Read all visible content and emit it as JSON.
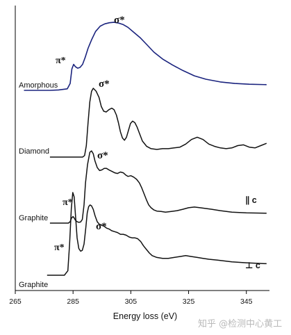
{
  "chart_data": {
    "type": "line",
    "title": "",
    "xlabel": "Energy loss (eV)",
    "ylabel": "",
    "xlim": [
      265,
      353
    ],
    "xticks": [
      265,
      285,
      305,
      325,
      345
    ],
    "grid": false,
    "series": [
      {
        "name": "Amorphous",
        "color": "#1a237e",
        "x": [
          268,
          277,
          280,
          283,
          284,
          284.6,
          285.2,
          285.8,
          286.6,
          287.4,
          288.3,
          289.2,
          290.2,
          291.4,
          292.8,
          294.4,
          296,
          297.6,
          299.2,
          300.8,
          302.4,
          304,
          306,
          308.2,
          310.5,
          313,
          316,
          319.5,
          323,
          327,
          331,
          336,
          341,
          346,
          352
        ],
        "y": [
          0,
          0,
          0.005,
          0.02,
          0.09,
          0.28,
          0.34,
          0.31,
          0.29,
          0.3,
          0.34,
          0.43,
          0.55,
          0.66,
          0.77,
          0.84,
          0.87,
          0.885,
          0.89,
          0.88,
          0.86,
          0.825,
          0.76,
          0.69,
          0.6,
          0.5,
          0.41,
          0.33,
          0.26,
          0.19,
          0.145,
          0.11,
          0.09,
          0.08,
          0.075
        ]
      },
      {
        "name": "Diamond",
        "color": "#111111",
        "x": [
          277,
          282,
          287,
          288.3,
          289,
          289.6,
          290.2,
          290.8,
          291.4,
          292,
          293,
          294,
          294.8,
          295.6,
          296.5,
          297.4,
          298.4,
          299.2,
          300,
          300.7,
          301.4,
          302.1,
          302.8,
          303.5,
          304.2,
          304.9,
          305.6,
          306.4,
          307.2,
          308,
          309,
          310.5,
          312,
          314,
          316,
          318,
          320,
          322,
          324,
          326,
          328,
          330,
          332,
          334,
          336,
          338,
          340,
          342,
          344,
          346,
          348,
          350,
          352
        ],
        "y": [
          0,
          0,
          0,
          0,
          0.02,
          0.15,
          0.45,
          0.72,
          0.86,
          0.9,
          0.86,
          0.78,
          0.66,
          0.6,
          0.59,
          0.62,
          0.64,
          0.62,
          0.55,
          0.45,
          0.33,
          0.25,
          0.22,
          0.26,
          0.35,
          0.44,
          0.47,
          0.45,
          0.39,
          0.31,
          0.21,
          0.14,
          0.11,
          0.1,
          0.11,
          0.11,
          0.12,
          0.13,
          0.17,
          0.23,
          0.26,
          0.23,
          0.17,
          0.14,
          0.12,
          0.11,
          0.12,
          0.15,
          0.16,
          0.13,
          0.12,
          0.15,
          0.18
        ]
      },
      {
        "name": "Graphite",
        "annotation": "∥ c",
        "color": "#111111",
        "x": [
          277,
          283.4,
          284,
          284.5,
          285,
          285.4,
          285.8,
          286.4,
          287,
          287.6,
          288.2,
          288.8,
          289.3,
          290,
          290.8,
          291.4,
          292,
          292.6,
          293.4,
          294.2,
          295,
          295.8,
          296.6,
          297.4,
          298.4,
          299.4,
          300.4,
          301.4,
          302.4,
          303.2,
          304,
          305,
          306,
          307,
          308,
          308.8,
          309.6,
          310.4,
          311.2,
          312,
          313,
          314,
          315.5,
          317,
          319,
          321,
          323,
          325,
          327,
          329,
          331,
          333,
          336,
          340,
          345,
          352
        ],
        "y": [
          0,
          0,
          0.02,
          0.07,
          0.09,
          0.07,
          0.04,
          0.02,
          0.01,
          0.015,
          0.05,
          0.25,
          0.55,
          0.8,
          0.97,
          0.99,
          0.95,
          0.85,
          0.76,
          0.72,
          0.73,
          0.75,
          0.75,
          0.73,
          0.71,
          0.69,
          0.68,
          0.7,
          0.69,
          0.66,
          0.64,
          0.65,
          0.63,
          0.6,
          0.55,
          0.48,
          0.4,
          0.32,
          0.25,
          0.21,
          0.18,
          0.165,
          0.16,
          0.15,
          0.16,
          0.17,
          0.19,
          0.21,
          0.22,
          0.21,
          0.2,
          0.19,
          0.17,
          0.15,
          0.14,
          0.135
        ]
      },
      {
        "name": "Graphite",
        "annotation": "⊥ c",
        "color": "#111111",
        "x": [
          276,
          279,
          282,
          283.2,
          283.8,
          284.4,
          284.9,
          285.4,
          285.9,
          286.4,
          287,
          287.6,
          288.2,
          288.8,
          289.4,
          289.9,
          290.4,
          290.9,
          291.4,
          292,
          292.6,
          293.4,
          294.2,
          295,
          295.8,
          296.6,
          297.4,
          298.4,
          299.4,
          300.4,
          301.4,
          302.4,
          303.4,
          304.4,
          305.4,
          306.4,
          307.4,
          308.4,
          309.4,
          310.4,
          311.4,
          312.4,
          314,
          316,
          318,
          320,
          322,
          324,
          326,
          328,
          330,
          332,
          335,
          340,
          345,
          352
        ],
        "y": [
          0,
          0,
          0,
          0.05,
          0.35,
          0.75,
          0.93,
          0.88,
          0.65,
          0.42,
          0.3,
          0.27,
          0.28,
          0.35,
          0.53,
          0.7,
          0.77,
          0.79,
          0.78,
          0.74,
          0.67,
          0.6,
          0.57,
          0.56,
          0.55,
          0.53,
          0.52,
          0.5,
          0.49,
          0.48,
          0.46,
          0.46,
          0.45,
          0.43,
          0.42,
          0.42,
          0.41,
          0.38,
          0.33,
          0.29,
          0.25,
          0.22,
          0.2,
          0.19,
          0.19,
          0.2,
          0.21,
          0.22,
          0.21,
          0.2,
          0.19,
          0.18,
          0.17,
          0.15,
          0.14,
          0.13
        ]
      }
    ],
    "labels": {
      "pi_star": "π*",
      "sigma_star": "σ*"
    }
  },
  "watermark": "知乎 @检测中心黄工"
}
